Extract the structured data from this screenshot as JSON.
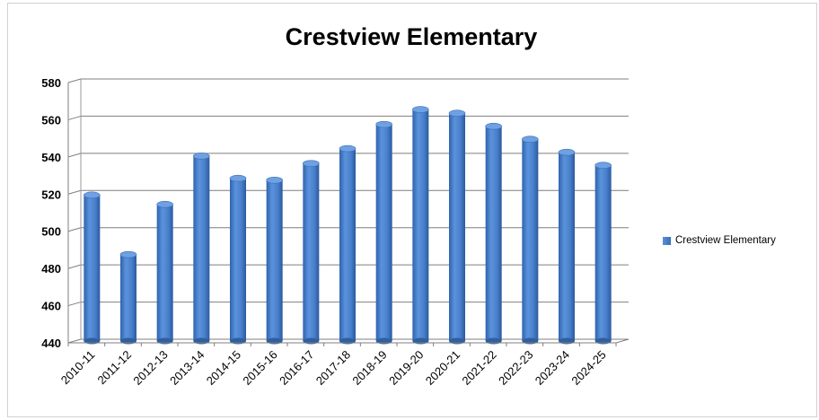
{
  "chart_data": {
    "type": "bar",
    "title": "Crestview Elementary",
    "categories": [
      "2010-11",
      "2011-12",
      "2012-13",
      "2013-14",
      "2014-15",
      "2015-16",
      "2016-17",
      "2017-18",
      "2018-19",
      "2019-20",
      "2020-21",
      "2021-22",
      "2022-23",
      "2023-24",
      "2024-25"
    ],
    "series": [
      {
        "name": "Crestview Elementary",
        "values": [
          519,
          487,
          514,
          540,
          528,
          527,
          536,
          544,
          557,
          565,
          563,
          556,
          549,
          542,
          535
        ]
      }
    ],
    "ylim": [
      440,
      580
    ],
    "yticks": [
      440,
      460,
      480,
      500,
      520,
      540,
      560,
      580
    ],
    "grid": true,
    "legend_position": "right",
    "bar_color": "#4a7fc9"
  }
}
